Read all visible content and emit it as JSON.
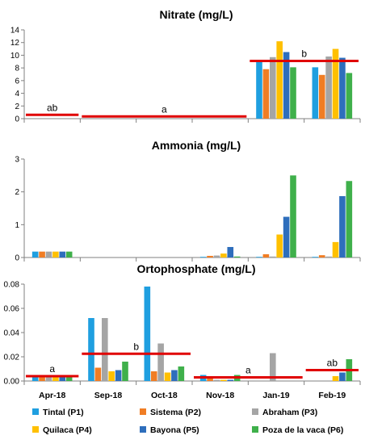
{
  "chart_data": {
    "type": "bar",
    "categories": [
      "Apr-18",
      "Sep-18",
      "Oct-18",
      "Nov-18",
      "Jan-19",
      "Feb-19"
    ],
    "colors": {
      "series": [
        "#1f9fe0",
        "#f07d24",
        "#a5a5a5",
        "#ffc000",
        "#2e6ebc",
        "#3fb04b"
      ],
      "mean_line": "#e00000"
    },
    "legend": {
      "position": "bottom",
      "entries": [
        "Tintal (P1)",
        "Sistema (P2)",
        "Abraham (P3)",
        "Quilaca (P4)",
        "Bayona (P5)",
        "Poza de la vaca (P6)"
      ]
    },
    "panels": [
      {
        "title": "Nitrate (mg/L)",
        "ylim": [
          0,
          14
        ],
        "yticks": [
          0,
          2,
          4,
          6,
          8,
          10,
          12,
          14
        ],
        "tick_labels": [
          "0",
          "2",
          "4",
          "6",
          "8",
          "10",
          "12",
          "14"
        ],
        "grid": false,
        "series": [
          {
            "name": "Tintal (P1)",
            "values": [
              0,
              0,
              0,
              0,
              9.0,
              8.1
            ]
          },
          {
            "name": "Sistema (P2)",
            "values": [
              0,
              0,
              0,
              0,
              7.8,
              6.9
            ]
          },
          {
            "name": "Abraham (P3)",
            "values": [
              0,
              0,
              0,
              0,
              9.7,
              9.8
            ]
          },
          {
            "name": "Quilaca (P4)",
            "values": [
              0,
              0,
              0,
              0,
              12.2,
              11.0
            ]
          },
          {
            "name": "Bayona (P5)",
            "values": [
              0,
              0,
              0,
              0,
              10.5,
              9.6
            ]
          },
          {
            "name": "Poza de la vaca (P6)",
            "values": [
              0,
              0,
              0,
              0,
              8.1,
              7.2
            ]
          }
        ],
        "mean_lines": [
          {
            "from": 0,
            "to": 0,
            "value": 0.6,
            "label": "ab"
          },
          {
            "from": 1,
            "to": 3,
            "value": 0.35,
            "label": "a"
          },
          {
            "from": 4,
            "to": 5,
            "value": 9.1,
            "label": "b"
          }
        ]
      },
      {
        "title": "Ammonia (mg/L)",
        "ylim": [
          0,
          3
        ],
        "yticks": [
          0,
          1,
          2,
          3
        ],
        "tick_labels": [
          "0",
          "1",
          "2",
          "3"
        ],
        "grid": false,
        "series": [
          {
            "name": "Tintal (P1)",
            "values": [
              0.18,
              0,
              0,
              0.02,
              0.02,
              0.02
            ]
          },
          {
            "name": "Sistema (P2)",
            "values": [
              0.18,
              0,
              0,
              0.05,
              0.1,
              0.07
            ]
          },
          {
            "name": "Abraham (P3)",
            "values": [
              0.18,
              0,
              0,
              0.06,
              0.03,
              0.03
            ]
          },
          {
            "name": "Quilaca (P4)",
            "values": [
              0.18,
              0,
              0,
              0.12,
              0.7,
              0.47
            ]
          },
          {
            "name": "Bayona (P5)",
            "values": [
              0.18,
              0,
              0,
              0.32,
              1.24,
              1.87
            ]
          },
          {
            "name": "Poza de la vaca (P6)",
            "values": [
              0.18,
              0,
              0,
              0.03,
              2.5,
              2.33
            ]
          }
        ],
        "mean_lines": []
      },
      {
        "title": "Ortophosphate (mg/L)",
        "ylim": [
          0,
          0.08
        ],
        "yticks": [
          0,
          0.02,
          0.04,
          0.06,
          0.08
        ],
        "tick_labels": [
          "0.00",
          "0.02",
          "0.04",
          "0.06",
          "0.08"
        ],
        "grid": false,
        "series": [
          {
            "name": "Tintal (P1)",
            "values": [
              0.004,
              0.052,
              0.078,
              0.005,
              0,
              0
            ]
          },
          {
            "name": "Sistema (P2)",
            "values": [
              0.004,
              0.011,
              0.008,
              0.002,
              0,
              0
            ]
          },
          {
            "name": "Abraham (P3)",
            "values": [
              0.004,
              0.052,
              0.031,
              0.001,
              0.023,
              0
            ]
          },
          {
            "name": "Quilaca (P4)",
            "values": [
              0.004,
              0.008,
              0.007,
              0.001,
              0,
              0.004
            ]
          },
          {
            "name": "Bayona (P5)",
            "values": [
              0.004,
              0.009,
              0.009,
              0.001,
              0,
              0.007
            ]
          },
          {
            "name": "Poza de la vaca (P6)",
            "values": [
              0.004,
              0.016,
              0.012,
              0.005,
              0,
              0.018
            ]
          }
        ],
        "mean_lines": [
          {
            "from": 0,
            "to": 0,
            "value": 0.004,
            "label": "a"
          },
          {
            "from": 1,
            "to": 2,
            "value": 0.0225,
            "label": "b"
          },
          {
            "from": 3,
            "to": 4,
            "value": 0.003,
            "label": "a"
          },
          {
            "from": 5,
            "to": 5,
            "value": 0.009,
            "label": "ab"
          }
        ]
      }
    ]
  }
}
